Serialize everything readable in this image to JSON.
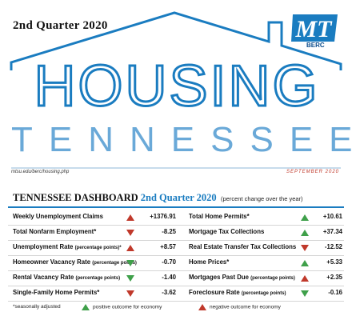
{
  "header": {
    "quarter_label": "2nd Quarter 2020",
    "title": "HOUSING",
    "subtitle": "TENNESSEE",
    "logo_text": "BERC",
    "url": "mtsu.edu/berc/housing.php",
    "date": "SEPTEMBER 2020",
    "colors": {
      "brand_blue": "#1a7cc0",
      "light_blue": "#6aa9d8",
      "green": "#3fa04a",
      "red": "#c0392b"
    }
  },
  "dashboard": {
    "title_prefix": "TENNESSEE DASHBOARD",
    "title_quarter": "2nd Quarter 2020",
    "note": "(percent change over the year)",
    "left": [
      {
        "label": "Weekly Unemployment Claims",
        "sub": "",
        "arrow": "up-red",
        "value": "+1376.91"
      },
      {
        "label": "Total Nonfarm Employment*",
        "sub": "",
        "arrow": "down-red",
        "value": "-8.25"
      },
      {
        "label": "Unemployment Rate",
        "sub": "(percentage points)*",
        "arrow": "up-red",
        "value": "+8.57"
      },
      {
        "label": "Homeowner Vacancy Rate",
        "sub": "(percentage points)",
        "arrow": "down-green",
        "value": "-0.70"
      },
      {
        "label": "Rental Vacancy Rate",
        "sub": "(percentage points)",
        "arrow": "down-green",
        "value": "-1.40"
      },
      {
        "label": "Single-Family Home Permits*",
        "sub": "",
        "arrow": "down-red",
        "value": "-3.62"
      }
    ],
    "right": [
      {
        "label": "Total Home Permits*",
        "sub": "",
        "arrow": "up-green",
        "value": "+10.61"
      },
      {
        "label": "Mortgage Tax Collections",
        "sub": "",
        "arrow": "up-green",
        "value": "+37.34"
      },
      {
        "label": "Real Estate Transfer Tax Collections",
        "sub": "",
        "arrow": "down-red",
        "value": "-12.52"
      },
      {
        "label": "Home Prices*",
        "sub": "",
        "arrow": "up-green",
        "value": "+5.33"
      },
      {
        "label": "Mortgages Past Due",
        "sub": "(percentage points)",
        "arrow": "up-red",
        "value": "+2.35"
      },
      {
        "label": "Foreclosure Rate",
        "sub": "(percentage points)",
        "arrow": "down-green",
        "value": "-0.16"
      }
    ]
  },
  "legend": {
    "footnote": "*seasonally adjusted",
    "positive": "positive outcome for economy",
    "negative": "negative outcome for economy"
  }
}
